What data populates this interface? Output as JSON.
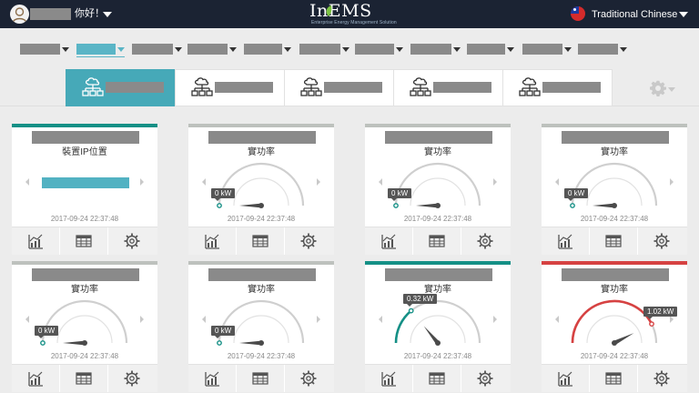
{
  "header": {
    "greeting": "你好！",
    "logo_text": "InEMS",
    "logo_subtitle": "Enterprise Energy Management Solution",
    "language": "Traditional Chinese",
    "user_icon": "user-avatar-icon",
    "flag_icon": "taiwan-flag-icon"
  },
  "filters": {
    "count": 11,
    "active_index": 1,
    "accent": "#5ab5c6"
  },
  "tabs": {
    "count": 5,
    "active_index": 0,
    "icon": "cloud-network-icon",
    "accent": "#46a9b8"
  },
  "cards": [
    {
      "status": "teal",
      "metric_label": "裝置IP位置",
      "kind": "ip",
      "timestamp": "2017-09-24 22:37:48"
    },
    {
      "status": "grey",
      "metric_label": "實功率",
      "kind": "gauge",
      "value_label": "0 kW",
      "level": 0,
      "timestamp": "2017-09-24 22:37:48"
    },
    {
      "status": "grey",
      "metric_label": "實功率",
      "kind": "gauge",
      "value_label": "0 kW",
      "level": 0,
      "timestamp": "2017-09-24 22:37:48"
    },
    {
      "status": "grey",
      "metric_label": "實功率",
      "kind": "gauge",
      "value_label": "0 kW",
      "level": 0,
      "timestamp": "2017-09-24 22:37:48"
    },
    {
      "status": "grey",
      "metric_label": "實功率",
      "kind": "gauge",
      "value_label": "0 kW",
      "level": 0,
      "timestamp": "2017-09-24 22:37:48"
    },
    {
      "status": "grey",
      "metric_label": "實功率",
      "kind": "gauge",
      "value_label": "0 kW",
      "level": 0,
      "timestamp": "2017-09-24 22:37:48"
    },
    {
      "status": "teal",
      "metric_label": "實功率",
      "kind": "gauge",
      "value_label": "0.32 kW",
      "level": 0.28,
      "timestamp": "2017-09-24 22:37:48"
    },
    {
      "status": "red",
      "metric_label": "實功率",
      "kind": "gauge",
      "value_label": "1.02 kW",
      "level": 0.85,
      "timestamp": "2017-09-24 22:37:48"
    }
  ],
  "footer_buttons": [
    "trend-chart-icon",
    "table-grid-icon",
    "gear-icon"
  ],
  "colors": {
    "header_bg": "#1b2333",
    "teal": "#159086",
    "red": "#d64242",
    "idle": "#bdc1bd"
  }
}
